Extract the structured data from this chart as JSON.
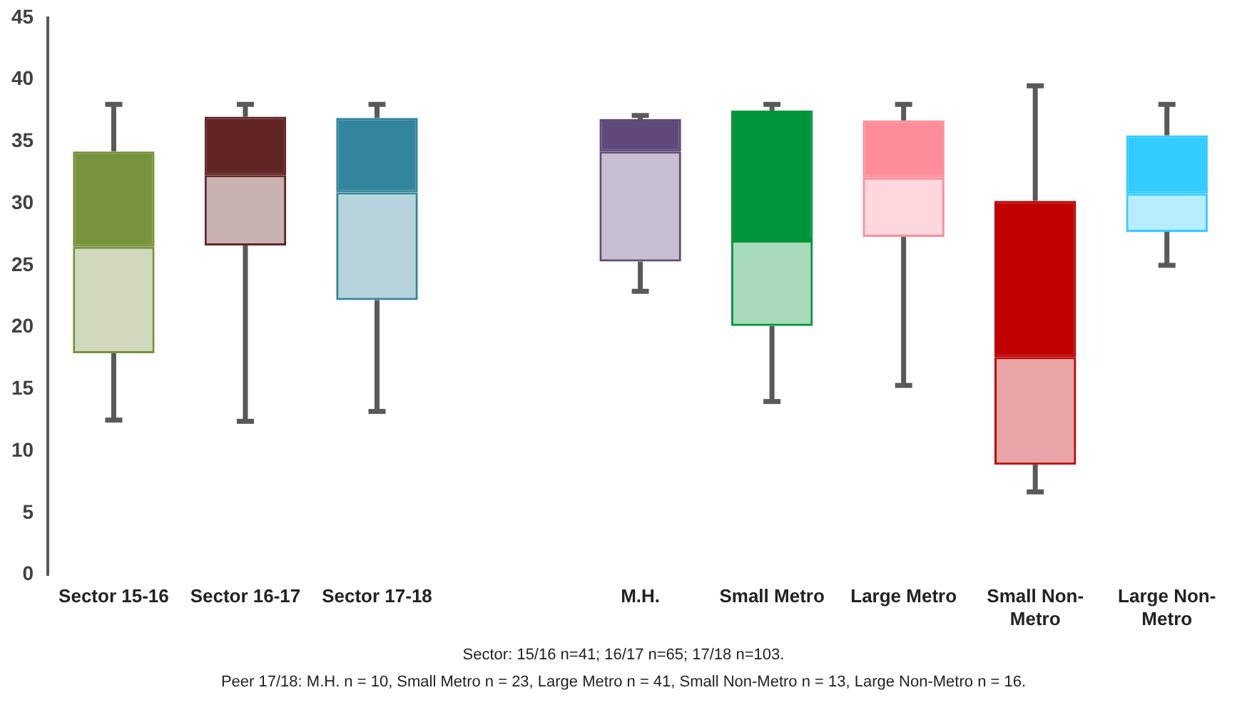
{
  "chart_data": {
    "type": "box",
    "categories": [
      "Sector 15-16",
      "Sector 16-17",
      "Sector 17-18",
      null,
      "M.H.",
      "Small Metro",
      "Large Metro",
      "Small Non-Metro",
      "Large Non-Metro"
    ],
    "boxes": [
      {
        "low": 12.5,
        "q1": 17.9,
        "median": 26.5,
        "q3": 34.2,
        "high": 38.0
      },
      {
        "low": 12.4,
        "q1": 26.6,
        "median": 32.3,
        "q3": 37.0,
        "high": 38.0
      },
      {
        "low": 13.2,
        "q1": 22.2,
        "median": 30.9,
        "q3": 36.9,
        "high": 38.0
      },
      null,
      {
        "low": 22.9,
        "q1": 25.3,
        "median": 34.2,
        "q3": 36.8,
        "high": 37.1
      },
      {
        "low": 14.0,
        "q1": 20.1,
        "median": 27.0,
        "q3": 37.5,
        "high": 38.0
      },
      {
        "low": 15.3,
        "q1": 27.3,
        "median": 32.1,
        "q3": 36.7,
        "high": 38.0
      },
      {
        "low": 6.7,
        "q1": 8.9,
        "median": 17.6,
        "q3": 30.2,
        "high": 39.5
      },
      {
        "low": 25.0,
        "q1": 27.7,
        "median": 30.8,
        "q3": 35.5,
        "high": 38.0
      }
    ],
    "colors": [
      "#77933c",
      "#632523",
      "#31859c",
      null,
      "#604a7b",
      "#00953a",
      "#ff8c9a",
      "#c00000",
      "#33ccff"
    ],
    "ylim": [
      0,
      45
    ],
    "yticks": [
      0,
      5,
      10,
      15,
      20,
      25,
      30,
      35,
      40,
      45
    ],
    "grid": false,
    "legend": false,
    "annotations": [
      "Sector: 15/16 n=41; 16/17 n=65; 17/18 n=103.",
      "Peer 17/18: M.H. n = 10, Small Metro n = 23, Large Metro n = 41, Small Non-Metro n = 13, Large Non-Metro n = 16."
    ]
  }
}
